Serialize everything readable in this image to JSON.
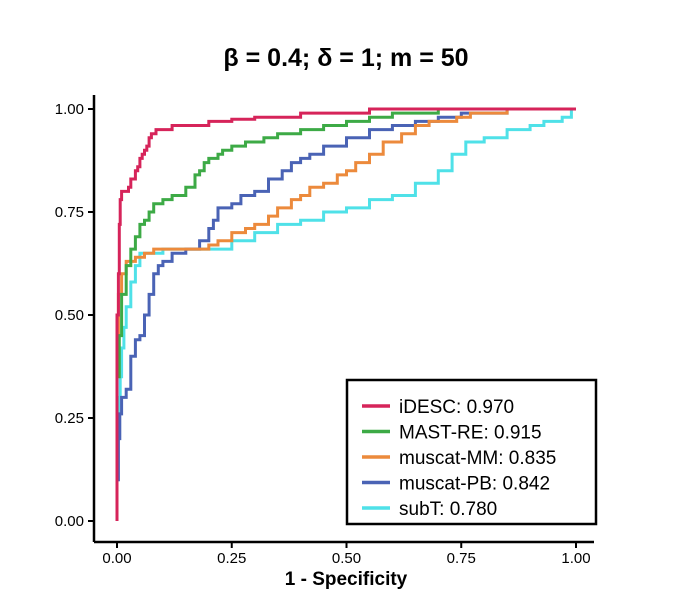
{
  "chart_data": {
    "type": "line",
    "title": "β = 0.4; δ = 1; m = 50",
    "xlabel": "1 - Specificity",
    "ylabel": "",
    "xlim": [
      0,
      1
    ],
    "ylim": [
      0,
      1
    ],
    "x_ticks": [
      "0.00",
      "0.25",
      "0.50",
      "0.75",
      "1.00"
    ],
    "y_ticks": [
      "0.00",
      "0.25",
      "0.50",
      "0.75",
      "1.00"
    ],
    "grid": false,
    "legend_position": "bottom-right",
    "series": [
      {
        "name": "iDESC: 0.970",
        "color": "#d6245a",
        "points": [
          [
            0,
            0
          ],
          [
            0,
            0.4
          ],
          [
            0.003,
            0.5
          ],
          [
            0.005,
            0.6
          ],
          [
            0.007,
            0.72
          ],
          [
            0.01,
            0.78
          ],
          [
            0.015,
            0.8
          ],
          [
            0.025,
            0.8
          ],
          [
            0.03,
            0.81
          ],
          [
            0.04,
            0.83
          ],
          [
            0.045,
            0.85
          ],
          [
            0.05,
            0.86
          ],
          [
            0.055,
            0.88
          ],
          [
            0.06,
            0.89
          ],
          [
            0.065,
            0.9
          ],
          [
            0.07,
            0.91
          ],
          [
            0.075,
            0.93
          ],
          [
            0.085,
            0.94
          ],
          [
            0.09,
            0.95
          ],
          [
            0.12,
            0.95
          ],
          [
            0.15,
            0.96
          ],
          [
            0.2,
            0.96
          ],
          [
            0.25,
            0.97
          ],
          [
            0.3,
            0.975
          ],
          [
            0.4,
            0.98
          ],
          [
            0.45,
            0.99
          ],
          [
            0.55,
            0.99
          ],
          [
            0.6,
            1.0
          ],
          [
            1.0,
            1.0
          ]
        ]
      },
      {
        "name": "MAST-RE: 0.915",
        "color": "#3daa46",
        "points": [
          [
            0,
            0
          ],
          [
            0.005,
            0.35
          ],
          [
            0.01,
            0.45
          ],
          [
            0.02,
            0.55
          ],
          [
            0.03,
            0.62
          ],
          [
            0.04,
            0.66
          ],
          [
            0.05,
            0.69
          ],
          [
            0.06,
            0.72
          ],
          [
            0.07,
            0.73
          ],
          [
            0.08,
            0.75
          ],
          [
            0.1,
            0.77
          ],
          [
            0.12,
            0.78
          ],
          [
            0.15,
            0.79
          ],
          [
            0.17,
            0.81
          ],
          [
            0.18,
            0.84
          ],
          [
            0.19,
            0.85
          ],
          [
            0.2,
            0.87
          ],
          [
            0.22,
            0.88
          ],
          [
            0.23,
            0.89
          ],
          [
            0.25,
            0.9
          ],
          [
            0.28,
            0.91
          ],
          [
            0.32,
            0.92
          ],
          [
            0.35,
            0.93
          ],
          [
            0.4,
            0.94
          ],
          [
            0.45,
            0.95
          ],
          [
            0.5,
            0.96
          ],
          [
            0.55,
            0.97
          ],
          [
            0.6,
            0.98
          ],
          [
            0.65,
            0.99
          ],
          [
            0.7,
            0.99
          ],
          [
            0.75,
            1.0
          ],
          [
            1.0,
            1.0
          ]
        ]
      },
      {
        "name": "muscat-MM: 0.835",
        "color": "#ec8a3c",
        "points": [
          [
            0,
            0
          ],
          [
            0.003,
            0.45
          ],
          [
            0.01,
            0.55
          ],
          [
            0.02,
            0.6
          ],
          [
            0.04,
            0.63
          ],
          [
            0.06,
            0.64
          ],
          [
            0.08,
            0.65
          ],
          [
            0.1,
            0.66
          ],
          [
            0.15,
            0.66
          ],
          [
            0.2,
            0.66
          ],
          [
            0.22,
            0.67
          ],
          [
            0.25,
            0.68
          ],
          [
            0.28,
            0.7
          ],
          [
            0.3,
            0.71
          ],
          [
            0.33,
            0.72
          ],
          [
            0.35,
            0.74
          ],
          [
            0.38,
            0.76
          ],
          [
            0.4,
            0.78
          ],
          [
            0.42,
            0.79
          ],
          [
            0.45,
            0.81
          ],
          [
            0.48,
            0.82
          ],
          [
            0.5,
            0.84
          ],
          [
            0.52,
            0.85
          ],
          [
            0.55,
            0.87
          ],
          [
            0.58,
            0.89
          ],
          [
            0.62,
            0.92
          ],
          [
            0.65,
            0.94
          ],
          [
            0.68,
            0.96
          ],
          [
            0.7,
            0.97
          ],
          [
            0.74,
            0.97
          ],
          [
            0.77,
            0.98
          ],
          [
            0.8,
            0.99
          ],
          [
            0.85,
            0.99
          ],
          [
            0.9,
            1.0
          ],
          [
            1.0,
            1.0
          ]
        ]
      },
      {
        "name": "muscat-PB: 0.842",
        "color": "#4a63b5",
        "points": [
          [
            0,
            0
          ],
          [
            0.003,
            0.1
          ],
          [
            0.006,
            0.2
          ],
          [
            0.01,
            0.26
          ],
          [
            0.015,
            0.3
          ],
          [
            0.02,
            0.3
          ],
          [
            0.03,
            0.32
          ],
          [
            0.04,
            0.4
          ],
          [
            0.05,
            0.44
          ],
          [
            0.06,
            0.45
          ],
          [
            0.07,
            0.5
          ],
          [
            0.08,
            0.55
          ],
          [
            0.09,
            0.6
          ],
          [
            0.1,
            0.62
          ],
          [
            0.12,
            0.63
          ],
          [
            0.15,
            0.65
          ],
          [
            0.18,
            0.66
          ],
          [
            0.2,
            0.68
          ],
          [
            0.21,
            0.71
          ],
          [
            0.22,
            0.73
          ],
          [
            0.25,
            0.76
          ],
          [
            0.27,
            0.77
          ],
          [
            0.3,
            0.79
          ],
          [
            0.33,
            0.8
          ],
          [
            0.36,
            0.83
          ],
          [
            0.38,
            0.85
          ],
          [
            0.4,
            0.87
          ],
          [
            0.42,
            0.88
          ],
          [
            0.45,
            0.89
          ],
          [
            0.5,
            0.91
          ],
          [
            0.55,
            0.93
          ],
          [
            0.6,
            0.95
          ],
          [
            0.65,
            0.96
          ],
          [
            0.7,
            0.97
          ],
          [
            0.75,
            0.98
          ],
          [
            0.8,
            0.99
          ],
          [
            0.85,
            0.99
          ],
          [
            0.9,
            1.0
          ],
          [
            1.0,
            1.0
          ]
        ]
      },
      {
        "name": "subT: 0.780",
        "color": "#4fe1e8",
        "points": [
          [
            0,
            0
          ],
          [
            0.002,
            0.1
          ],
          [
            0.004,
            0.2
          ],
          [
            0.007,
            0.3
          ],
          [
            0.01,
            0.35
          ],
          [
            0.015,
            0.42
          ],
          [
            0.02,
            0.47
          ],
          [
            0.03,
            0.52
          ],
          [
            0.04,
            0.58
          ],
          [
            0.05,
            0.62
          ],
          [
            0.06,
            0.65
          ],
          [
            0.1,
            0.65
          ],
          [
            0.15,
            0.66
          ],
          [
            0.2,
            0.66
          ],
          [
            0.25,
            0.66
          ],
          [
            0.3,
            0.68
          ],
          [
            0.35,
            0.7
          ],
          [
            0.4,
            0.72
          ],
          [
            0.45,
            0.73
          ],
          [
            0.5,
            0.75
          ],
          [
            0.55,
            0.76
          ],
          [
            0.6,
            0.78
          ],
          [
            0.65,
            0.79
          ],
          [
            0.7,
            0.82
          ],
          [
            0.73,
            0.85
          ],
          [
            0.76,
            0.89
          ],
          [
            0.8,
            0.92
          ],
          [
            0.85,
            0.93
          ],
          [
            0.9,
            0.95
          ],
          [
            0.93,
            0.96
          ],
          [
            0.97,
            0.97
          ],
          [
            0.99,
            0.98
          ],
          [
            1.0,
            1.0
          ]
        ]
      }
    ]
  }
}
